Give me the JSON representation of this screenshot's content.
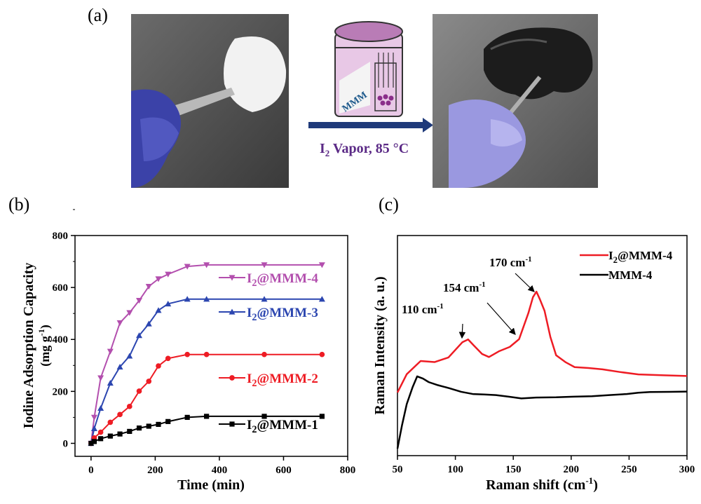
{
  "panels": {
    "a": "(a)",
    "b": "(b)",
    "c": "(c)"
  },
  "scheme": {
    "jar_label": "MMM",
    "condition_main": "I",
    "condition_sub": "2",
    "condition_rest": " Vapor, 85 °C",
    "arrow_color": "#1f3a7a",
    "text_color": "#5b2a86"
  },
  "chart_data": [
    {
      "type": "line",
      "id": "b",
      "xlabel": "Time (min)",
      "ylabel_main": "Iodine Adsorption Capacity",
      "ylabel_unit_main": "(mg g",
      "ylabel_unit_sup": "-1",
      "ylabel_unit_end": ")",
      "xlim": [
        -50,
        800
      ],
      "ylim": [
        -50,
        800
      ],
      "xticks": [
        0,
        200,
        400,
        600,
        800
      ],
      "yticks": [
        0,
        200,
        400,
        600,
        800
      ],
      "x": [
        0,
        10,
        30,
        60,
        90,
        120,
        150,
        180,
        210,
        240,
        300,
        360,
        540,
        720
      ],
      "series": [
        {
          "name_main": "I",
          "name_sub": "2",
          "name_rest": "@MMM-4",
          "color": "#b34fae",
          "marker": "triangle-down",
          "values": [
            0,
            100,
            252,
            354,
            464,
            503,
            550,
            604,
            633,
            651,
            681,
            687,
            687,
            687
          ]
        },
        {
          "name_main": "I",
          "name_sub": "2",
          "name_rest": "@MMM-3",
          "color": "#2c46b0",
          "marker": "triangle-up",
          "values": [
            0,
            57,
            135,
            232,
            294,
            336,
            415,
            460,
            512,
            537,
            555,
            555,
            555,
            555
          ]
        },
        {
          "name_main": "I",
          "name_sub": "2",
          "name_rest": "@MMM-2",
          "color": "#ee1c24",
          "marker": "circle",
          "values": [
            0,
            21,
            43,
            81,
            111,
            142,
            201,
            239,
            298,
            327,
            342,
            342,
            342,
            342
          ]
        },
        {
          "name_main": "I",
          "name_sub": "2",
          "name_rest": "@MMM-1",
          "color": "#000000",
          "marker": "square",
          "values": [
            0,
            7,
            18,
            28,
            36,
            46,
            59,
            66,
            73,
            84,
            100,
            104,
            104,
            104
          ]
        }
      ]
    },
    {
      "type": "line",
      "id": "c",
      "xlabel_main": "Raman shift (cm",
      "xlabel_sup": "-1",
      "xlabel_end": ")",
      "ylabel": "Raman Intensity (a. u.)",
      "xlim": [
        50,
        300
      ],
      "ylim": [
        0,
        100
      ],
      "xticks": [
        50,
        100,
        150,
        200,
        250,
        300
      ],
      "series": [
        {
          "name_main": "I",
          "name_sub": "2",
          "name_rest": "@MMM-4",
          "color": "#ee1c24",
          "x": [
            50,
            58,
            70,
            82,
            94,
            106,
            111,
            116,
            123,
            129,
            138,
            147,
            155,
            163,
            167,
            170,
            173,
            177,
            182,
            187,
            195,
            203,
            215,
            227,
            242,
            258,
            280,
            300
          ],
          "values": [
            28.7,
            37,
            43,
            42.5,
            44.6,
            51.5,
            52.8,
            50,
            46.2,
            44.8,
            47.5,
            49.4,
            52.9,
            64.7,
            72,
            74.5,
            71,
            65.8,
            54,
            45.6,
            42.5,
            40.2,
            39.8,
            39.2,
            38,
            36.9,
            36.5,
            36.2
          ]
        },
        {
          "name_main": "MMM-4",
          "name_sub": "",
          "name_rest": "",
          "color": "#000000",
          "x": [
            50,
            54,
            58,
            63,
            67,
            72,
            77,
            85,
            95,
            105,
            115,
            125,
            135,
            146,
            157,
            170,
            187,
            202,
            218,
            233,
            248,
            258,
            268,
            285,
            300
          ],
          "values": [
            3.2,
            14,
            23.4,
            31,
            36,
            35,
            33.4,
            32,
            30.6,
            29,
            28,
            27.8,
            27.5,
            26.8,
            26,
            26.4,
            26.5,
            26.8,
            27,
            27.5,
            28,
            28.6,
            28.9,
            29,
            29.1
          ]
        }
      ],
      "annotations": [
        {
          "main": "110 cm",
          "sup": "-1",
          "peak": 110
        },
        {
          "main": "154 cm",
          "sup": "-1",
          "peak": 154
        },
        {
          "main": "170 cm",
          "sup": "-1",
          "peak": 170
        }
      ]
    }
  ]
}
